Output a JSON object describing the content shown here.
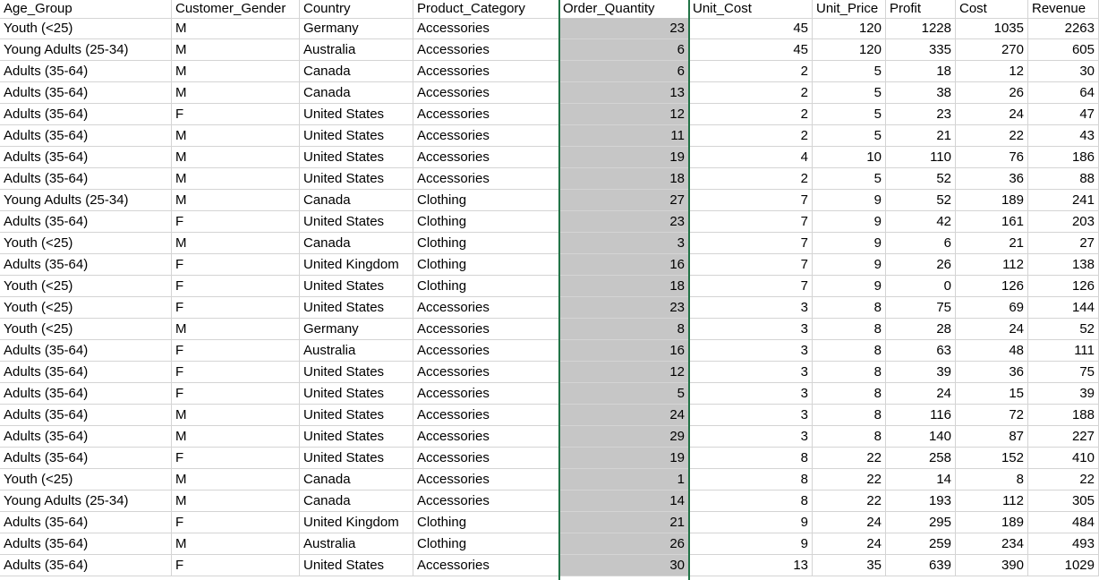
{
  "sheet": {
    "columns": [
      "Age_Group",
      "Customer_Gender",
      "Country",
      "Product_Category",
      "Order_Quantity",
      "Unit_Cost",
      "Unit_Price",
      "Profit",
      "Cost",
      "Revenue"
    ],
    "rows": [
      [
        "Youth (<25)",
        "M",
        "Germany",
        "Accessories",
        "23",
        "45",
        "120",
        "1228",
        "1035",
        "2263"
      ],
      [
        "Young Adults (25-34)",
        "M",
        "Australia",
        "Accessories",
        "6",
        "45",
        "120",
        "335",
        "270",
        "605"
      ],
      [
        "Adults (35-64)",
        "M",
        "Canada",
        "Accessories",
        "6",
        "2",
        "5",
        "18",
        "12",
        "30"
      ],
      [
        "Adults (35-64)",
        "M",
        "Canada",
        "Accessories",
        "13",
        "2",
        "5",
        "38",
        "26",
        "64"
      ],
      [
        "Adults (35-64)",
        "F",
        "United States",
        "Accessories",
        "12",
        "2",
        "5",
        "23",
        "24",
        "47"
      ],
      [
        "Adults (35-64)",
        "M",
        "United States",
        "Accessories",
        "11",
        "2",
        "5",
        "21",
        "22",
        "43"
      ],
      [
        "Adults (35-64)",
        "M",
        "United States",
        "Accessories",
        "19",
        "4",
        "10",
        "110",
        "76",
        "186"
      ],
      [
        "Adults (35-64)",
        "M",
        "United States",
        "Accessories",
        "18",
        "2",
        "5",
        "52",
        "36",
        "88"
      ],
      [
        "Young Adults (25-34)",
        "M",
        "Canada",
        "Clothing",
        "27",
        "7",
        "9",
        "52",
        "189",
        "241"
      ],
      [
        "Adults (35-64)",
        "F",
        "United States",
        "Clothing",
        "23",
        "7",
        "9",
        "42",
        "161",
        "203"
      ],
      [
        "Youth (<25)",
        "M",
        "Canada",
        "Clothing",
        "3",
        "7",
        "9",
        "6",
        "21",
        "27"
      ],
      [
        "Adults (35-64)",
        "F",
        "United Kingdom",
        "Clothing",
        "16",
        "7",
        "9",
        "26",
        "112",
        "138"
      ],
      [
        "Youth (<25)",
        "F",
        "United States",
        "Clothing",
        "18",
        "7",
        "9",
        "0",
        "126",
        "126"
      ],
      [
        "Youth (<25)",
        "F",
        "United States",
        "Accessories",
        "23",
        "3",
        "8",
        "75",
        "69",
        "144"
      ],
      [
        "Youth (<25)",
        "M",
        "Germany",
        "Accessories",
        "8",
        "3",
        "8",
        "28",
        "24",
        "52"
      ],
      [
        "Adults (35-64)",
        "F",
        "Australia",
        "Accessories",
        "16",
        "3",
        "8",
        "63",
        "48",
        "111"
      ],
      [
        "Adults (35-64)",
        "F",
        "United States",
        "Accessories",
        "12",
        "3",
        "8",
        "39",
        "36",
        "75"
      ],
      [
        "Adults (35-64)",
        "F",
        "United States",
        "Accessories",
        "5",
        "3",
        "8",
        "24",
        "15",
        "39"
      ],
      [
        "Adults (35-64)",
        "M",
        "United States",
        "Accessories",
        "24",
        "3",
        "8",
        "116",
        "72",
        "188"
      ],
      [
        "Adults (35-64)",
        "M",
        "United States",
        "Accessories",
        "29",
        "3",
        "8",
        "140",
        "87",
        "227"
      ],
      [
        "Adults (35-64)",
        "F",
        "United States",
        "Accessories",
        "19",
        "8",
        "22",
        "258",
        "152",
        "410"
      ],
      [
        "Youth (<25)",
        "M",
        "Canada",
        "Accessories",
        "1",
        "8",
        "22",
        "14",
        "8",
        "22"
      ],
      [
        "Young Adults (25-34)",
        "M",
        "Canada",
        "Accessories",
        "14",
        "8",
        "22",
        "193",
        "112",
        "305"
      ],
      [
        "Adults (35-64)",
        "F",
        "United Kingdom",
        "Clothing",
        "21",
        "9",
        "24",
        "295",
        "189",
        "484"
      ],
      [
        "Adults (35-64)",
        "M",
        "Australia",
        "Clothing",
        "26",
        "9",
        "24",
        "259",
        "234",
        "493"
      ],
      [
        "Adults (35-64)",
        "F",
        "United States",
        "Accessories",
        "30",
        "13",
        "35",
        "639",
        "390",
        "1029"
      ]
    ]
  },
  "colors": {
    "selection_fill": "#c6c6c6",
    "selection_border": "#217346",
    "gridline": "#d4d4d4"
  }
}
